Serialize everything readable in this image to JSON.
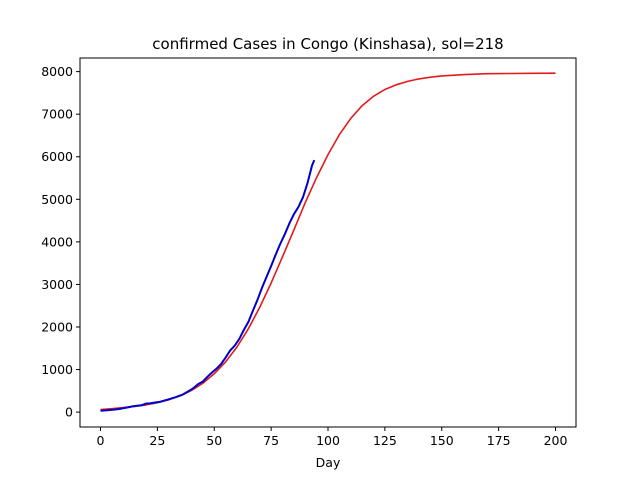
{
  "chart_data": {
    "type": "line",
    "title": "confirmed Cases in Congo (Kinshasa), sol=218",
    "xlabel": "Day",
    "ylabel": "",
    "xlim": [
      -9,
      209
    ],
    "ylim": [
      -350,
      8320
    ],
    "xticks": [
      0,
      25,
      50,
      75,
      100,
      125,
      150,
      175,
      200
    ],
    "yticks": [
      0,
      1000,
      2000,
      3000,
      4000,
      5000,
      6000,
      7000,
      8000
    ],
    "grid": false,
    "legend": "none",
    "series": [
      {
        "role": "fit",
        "color": "#e31a1c",
        "x": [
          0,
          5,
          10,
          15,
          20,
          25,
          30,
          35,
          40,
          45,
          50,
          55,
          60,
          65,
          70,
          75,
          80,
          85,
          90,
          95,
          100,
          105,
          110,
          115,
          120,
          125,
          130,
          135,
          140,
          145,
          150,
          160,
          170,
          180,
          190,
          200
        ],
        "y": [
          60,
          80,
          105,
          135,
          170,
          220,
          290,
          380,
          510,
          680,
          900,
          1180,
          1530,
          1960,
          2460,
          3030,
          3650,
          4280,
          4920,
          5510,
          6050,
          6520,
          6900,
          7200,
          7420,
          7580,
          7690,
          7770,
          7830,
          7870,
          7900,
          7930,
          7950,
          7955,
          7960,
          7962
        ]
      },
      {
        "role": "observed",
        "color": "#0000cc",
        "x": [
          0,
          3,
          6,
          9,
          12,
          14,
          16,
          18,
          20,
          22,
          24,
          26,
          28,
          30,
          33,
          36,
          39,
          41,
          43,
          45,
          47,
          49,
          51,
          53,
          55,
          57,
          59,
          61,
          63,
          65,
          67,
          69,
          71,
          73,
          75,
          77,
          79,
          81,
          83,
          85,
          87,
          89,
          91,
          93,
          94
        ],
        "y": [
          30,
          45,
          60,
          80,
          110,
          135,
          150,
          160,
          200,
          210,
          225,
          240,
          270,
          300,
          350,
          410,
          500,
          570,
          660,
          720,
          830,
          930,
          1020,
          1130,
          1280,
          1450,
          1560,
          1720,
          1930,
          2120,
          2380,
          2640,
          2920,
          3180,
          3430,
          3700,
          3950,
          4180,
          4430,
          4650,
          4820,
          5050,
          5380,
          5800,
          5920
        ]
      }
    ]
  }
}
